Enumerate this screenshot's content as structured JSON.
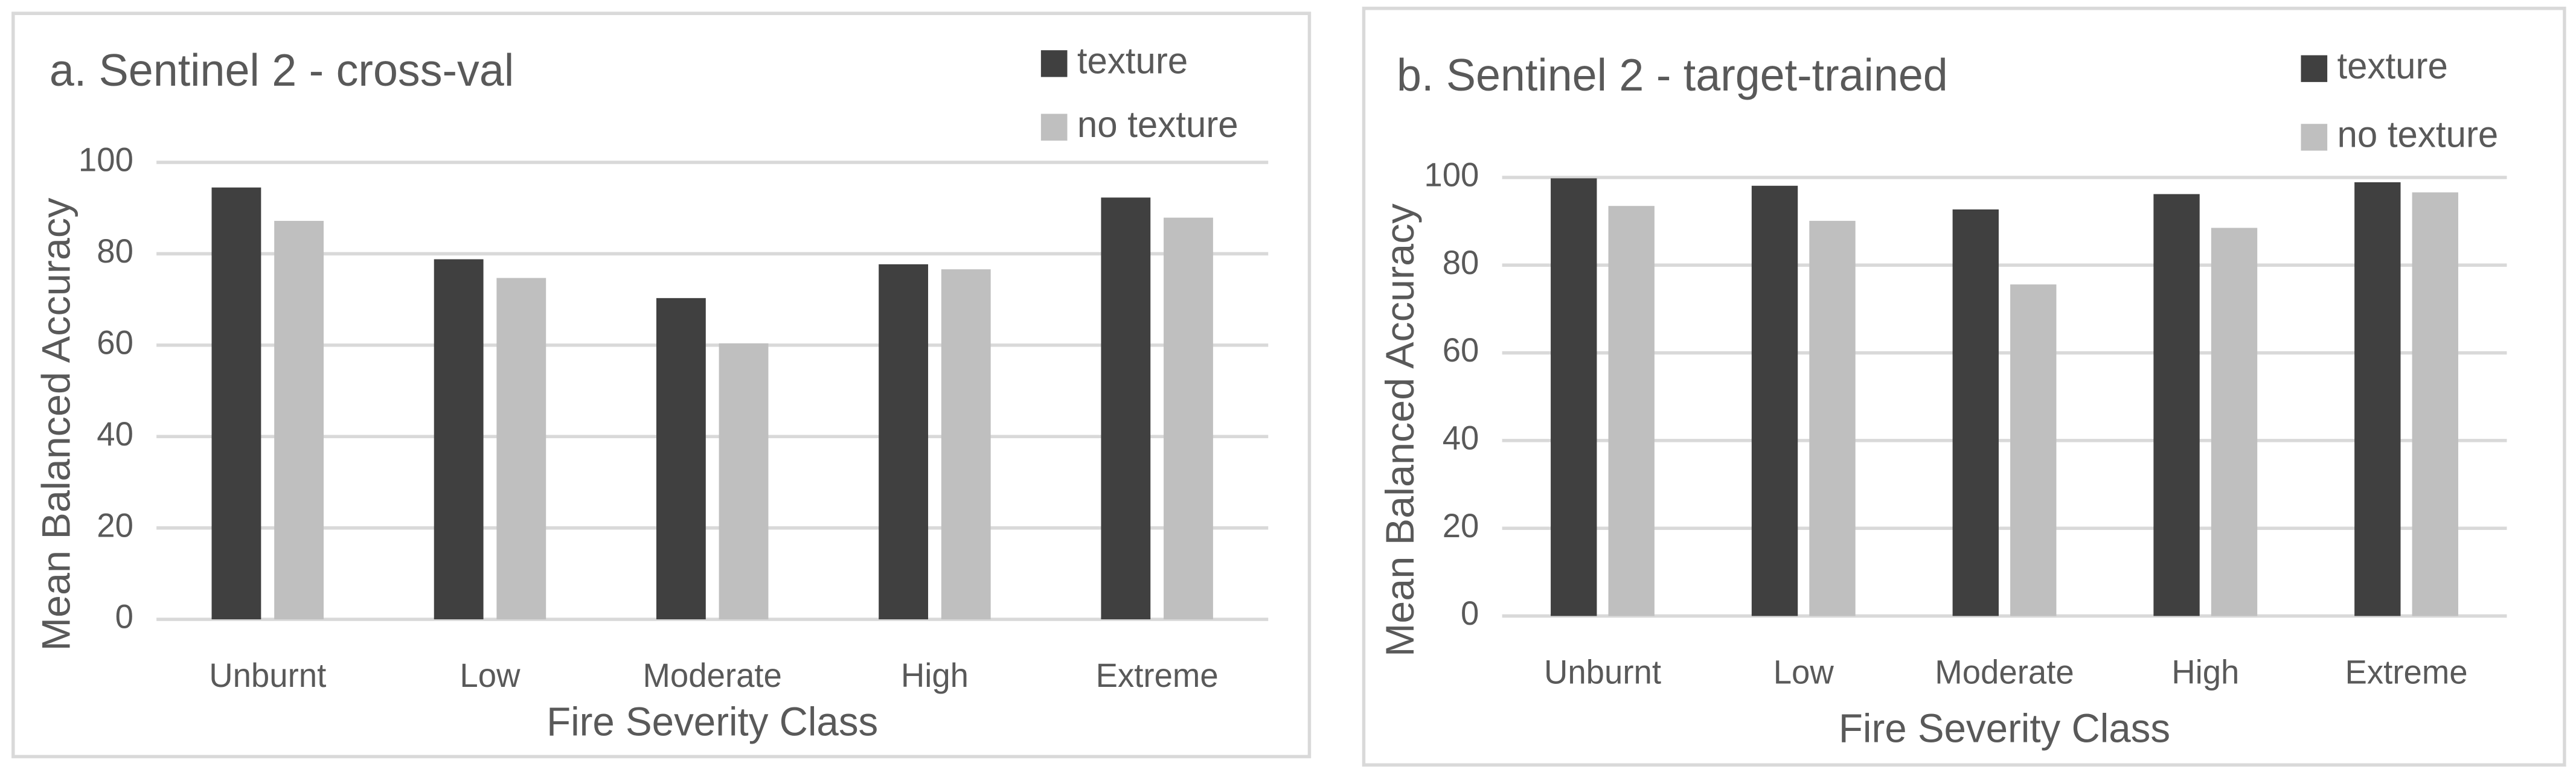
{
  "chart_data": [
    {
      "type": "bar",
      "title": "a. Sentinel 2 - cross-val",
      "x_label": "Fire Severity Class",
      "y_label": "Mean Balanced Accuracy",
      "categories": [
        "Unburnt",
        "Low",
        "Moderate",
        "High",
        "Extreme"
      ],
      "series": [
        {
          "name": "texture",
          "color": "#404040",
          "values": [
            94.5,
            78.8,
            70.3,
            77.7,
            92.3
          ]
        },
        {
          "name": "no texture",
          "color": "#bfbfbf",
          "values": [
            87.2,
            74.7,
            60.4,
            76.6,
            87.9
          ]
        }
      ],
      "ylim": [
        0,
        100
      ],
      "yticks": [
        0,
        20,
        40,
        60,
        80,
        100
      ],
      "grid": true,
      "legend": "top-right"
    },
    {
      "type": "bar",
      "title": "b. Sentinel 2 - target-trained",
      "x_label": "Fire Severity Class",
      "y_label": "Mean Balanced Accuracy",
      "categories": [
        "Unburnt",
        "Low",
        "Moderate",
        "High",
        "Extreme"
      ],
      "series": [
        {
          "name": "texture",
          "color": "#404040",
          "values": [
            99.8,
            98.1,
            92.7,
            96.2,
            98.9
          ]
        },
        {
          "name": "no texture",
          "color": "#bfbfbf",
          "values": [
            93.5,
            90.1,
            75.6,
            88.5,
            96.6
          ]
        }
      ],
      "ylim": [
        0,
        100
      ],
      "yticks": [
        0,
        20,
        40,
        60,
        80,
        100
      ],
      "grid": true,
      "legend": "top-right"
    }
  ]
}
